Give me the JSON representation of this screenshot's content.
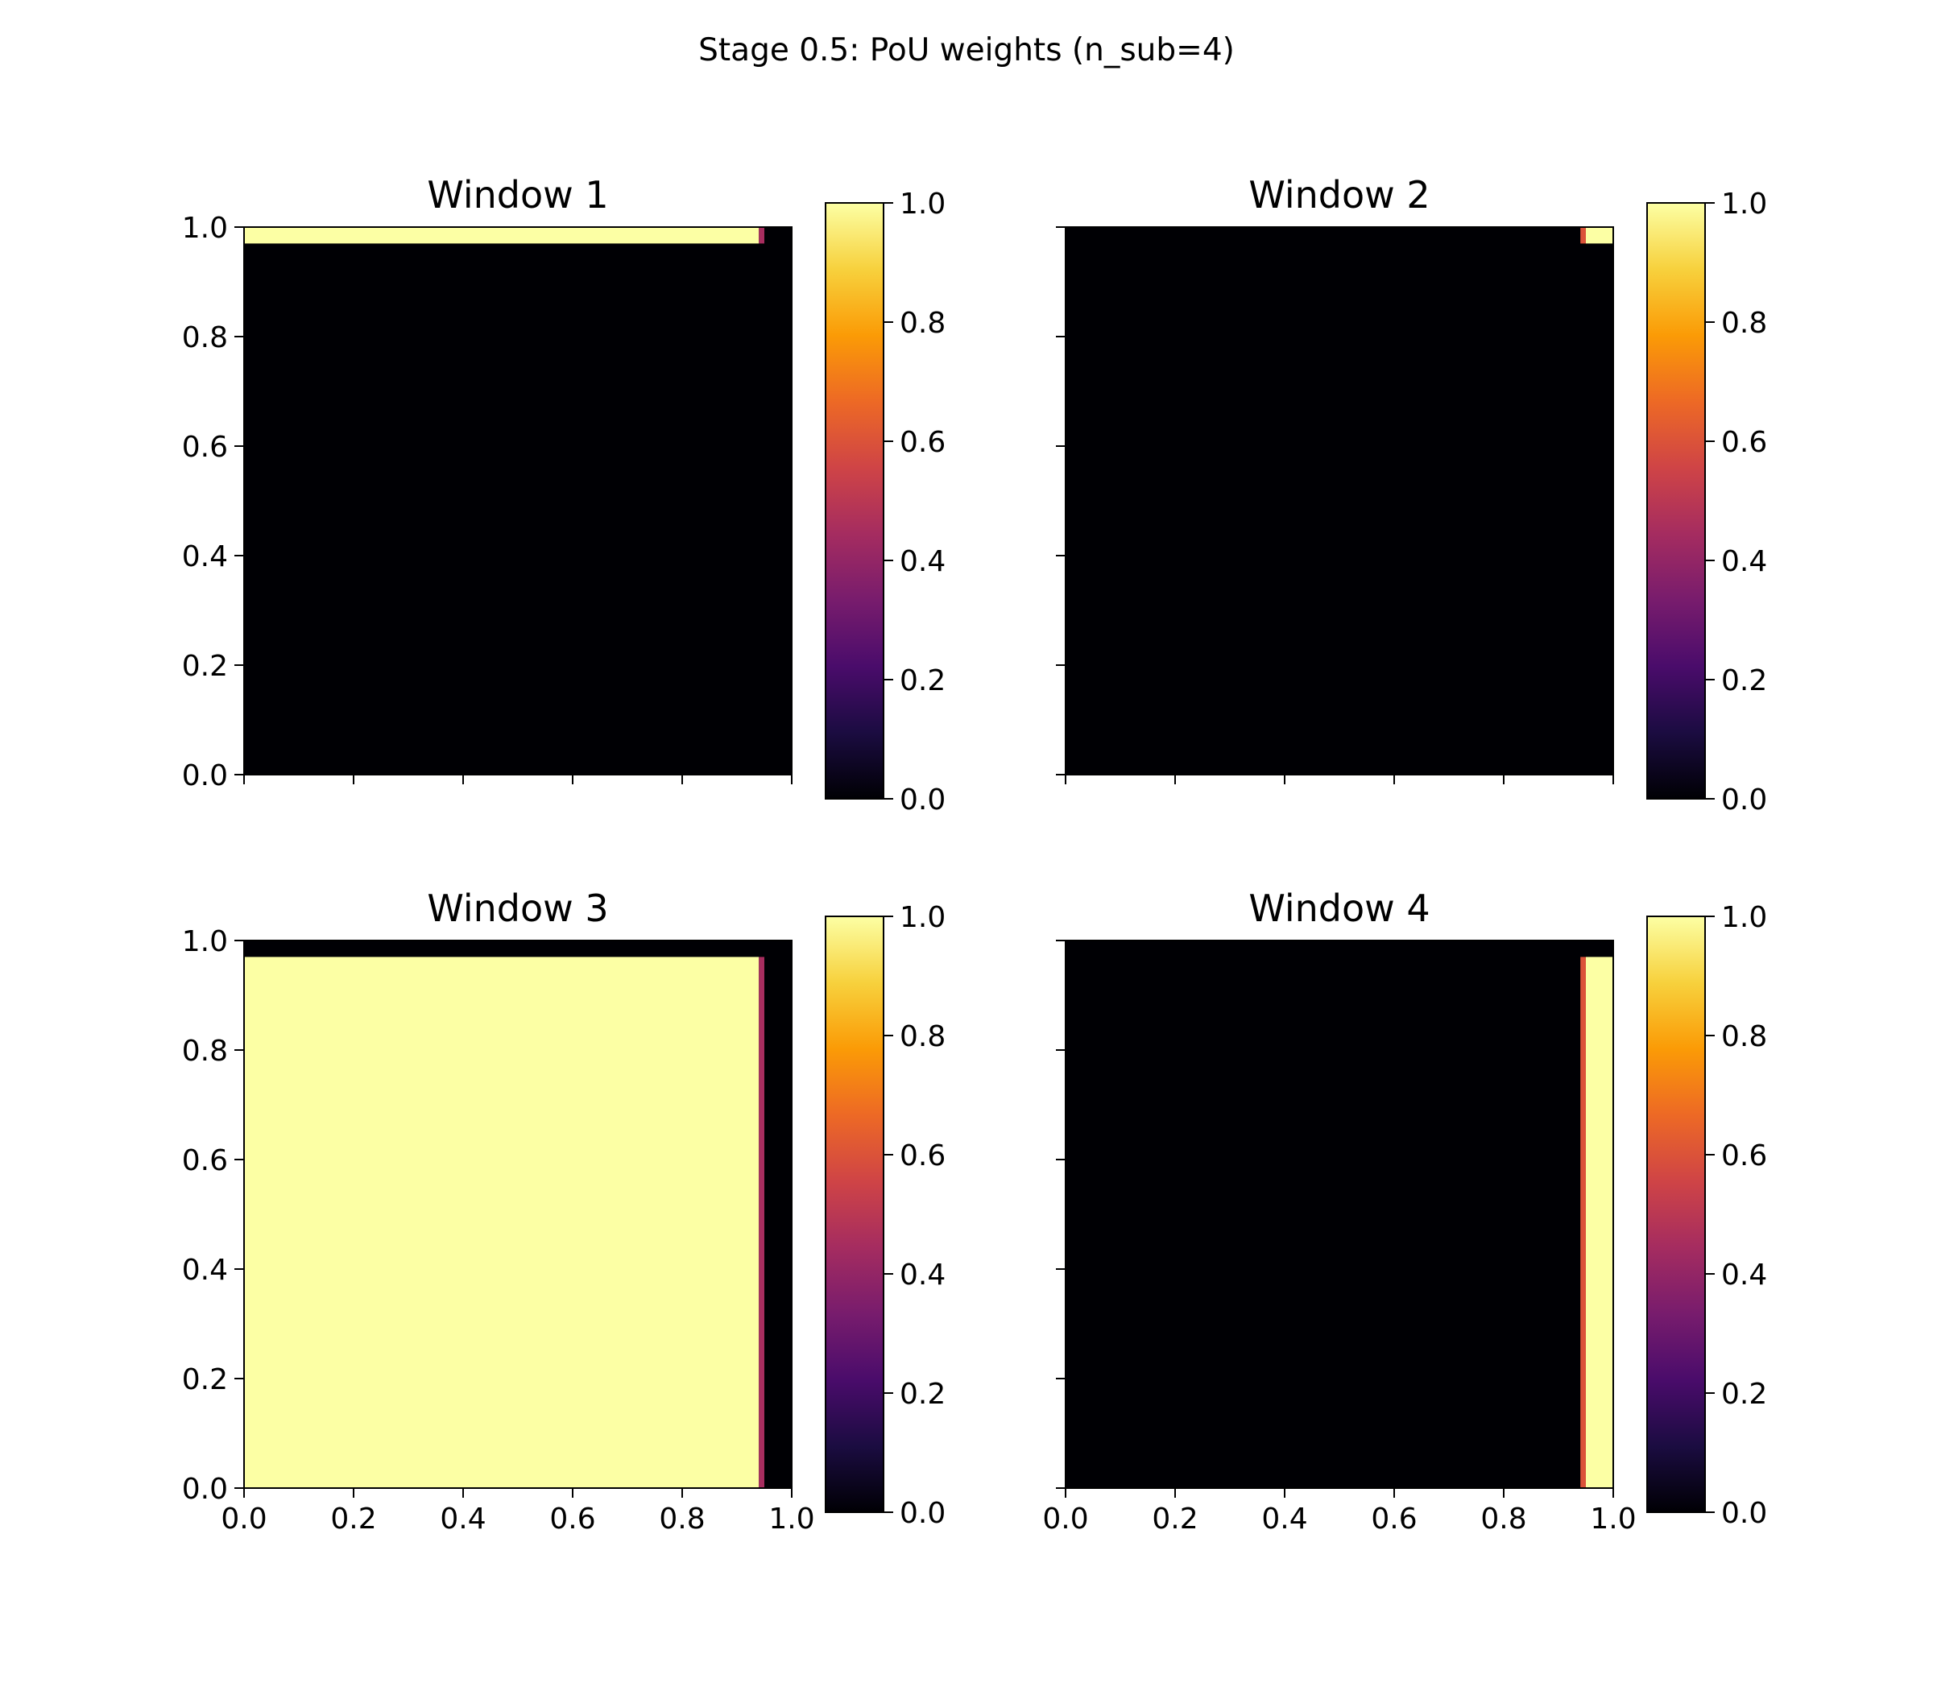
{
  "figure": {
    "suptitle": "Stage 0.5: PoU weights (n_sub=4)"
  },
  "colormap": {
    "name": "inferno",
    "stops": [
      "#000004",
      "#1b0c41",
      "#4a0c6b",
      "#781c6d",
      "#a52c60",
      "#cf4446",
      "#ed6925",
      "#fb9b06",
      "#f7d13d",
      "#fcffa4"
    ]
  },
  "chart_data": [
    {
      "type": "heatmap",
      "title": "Window 1",
      "xlim": [
        0.0,
        1.0
      ],
      "ylim": [
        0.0,
        1.0
      ],
      "x_ticks": [
        "0.0",
        "0.2",
        "0.4",
        "0.6",
        "0.8",
        "1.0"
      ],
      "y_ticks": [
        "0.0",
        "0.2",
        "0.4",
        "0.6",
        "0.8",
        "1.0"
      ],
      "show_x_tick_labels": false,
      "show_y_tick_labels": true,
      "colorbar": {
        "range": [
          0.0,
          1.0
        ],
        "ticks": [
          "0.0",
          "0.2",
          "0.4",
          "0.6",
          "0.8",
          "1.0"
        ]
      },
      "background_value": 0.0,
      "regions": [
        {
          "x": [
            0.0,
            0.94
          ],
          "y": [
            0.97,
            1.0
          ],
          "value": 1.0
        },
        {
          "x": [
            0.94,
            0.95
          ],
          "y": [
            0.97,
            1.0
          ],
          "value": 0.45
        }
      ]
    },
    {
      "type": "heatmap",
      "title": "Window 2",
      "xlim": [
        0.0,
        1.0
      ],
      "ylim": [
        0.0,
        1.0
      ],
      "x_ticks": [
        "0.0",
        "0.2",
        "0.4",
        "0.6",
        "0.8",
        "1.0"
      ],
      "y_ticks": [
        "0.0",
        "0.2",
        "0.4",
        "0.6",
        "0.8",
        "1.0"
      ],
      "show_x_tick_labels": false,
      "show_y_tick_labels": false,
      "colorbar": {
        "range": [
          0.0,
          1.0
        ],
        "ticks": [
          "0.0",
          "0.2",
          "0.4",
          "0.6",
          "0.8",
          "1.0"
        ]
      },
      "background_value": 0.0,
      "regions": [
        {
          "x": [
            0.94,
            0.95
          ],
          "y": [
            0.97,
            1.0
          ],
          "value": 0.6
        },
        {
          "x": [
            0.95,
            1.0
          ],
          "y": [
            0.97,
            1.0
          ],
          "value": 1.0
        }
      ]
    },
    {
      "type": "heatmap",
      "title": "Window 3",
      "xlim": [
        0.0,
        1.0
      ],
      "ylim": [
        0.0,
        1.0
      ],
      "x_ticks": [
        "0.0",
        "0.2",
        "0.4",
        "0.6",
        "0.8",
        "1.0"
      ],
      "y_ticks": [
        "0.0",
        "0.2",
        "0.4",
        "0.6",
        "0.8",
        "1.0"
      ],
      "show_x_tick_labels": true,
      "show_y_tick_labels": true,
      "colorbar": {
        "range": [
          0.0,
          1.0
        ],
        "ticks": [
          "0.0",
          "0.2",
          "0.4",
          "0.6",
          "0.8",
          "1.0"
        ]
      },
      "background_value": 0.0,
      "regions": [
        {
          "x": [
            0.0,
            0.94
          ],
          "y": [
            0.0,
            0.97
          ],
          "value": 1.0
        },
        {
          "x": [
            0.94,
            0.95
          ],
          "y": [
            0.0,
            0.97
          ],
          "value": 0.45
        }
      ]
    },
    {
      "type": "heatmap",
      "title": "Window 4",
      "xlim": [
        0.0,
        1.0
      ],
      "ylim": [
        0.0,
        1.0
      ],
      "x_ticks": [
        "0.0",
        "0.2",
        "0.4",
        "0.6",
        "0.8",
        "1.0"
      ],
      "y_ticks": [
        "0.0",
        "0.2",
        "0.4",
        "0.6",
        "0.8",
        "1.0"
      ],
      "show_x_tick_labels": true,
      "show_y_tick_labels": false,
      "colorbar": {
        "range": [
          0.0,
          1.0
        ],
        "ticks": [
          "0.0",
          "0.2",
          "0.4",
          "0.6",
          "0.8",
          "1.0"
        ]
      },
      "background_value": 0.0,
      "regions": [
        {
          "x": [
            0.94,
            0.95
          ],
          "y": [
            0.0,
            0.97
          ],
          "value": 0.6
        },
        {
          "x": [
            0.95,
            1.0
          ],
          "y": [
            0.0,
            0.97
          ],
          "value": 1.0
        }
      ]
    }
  ]
}
